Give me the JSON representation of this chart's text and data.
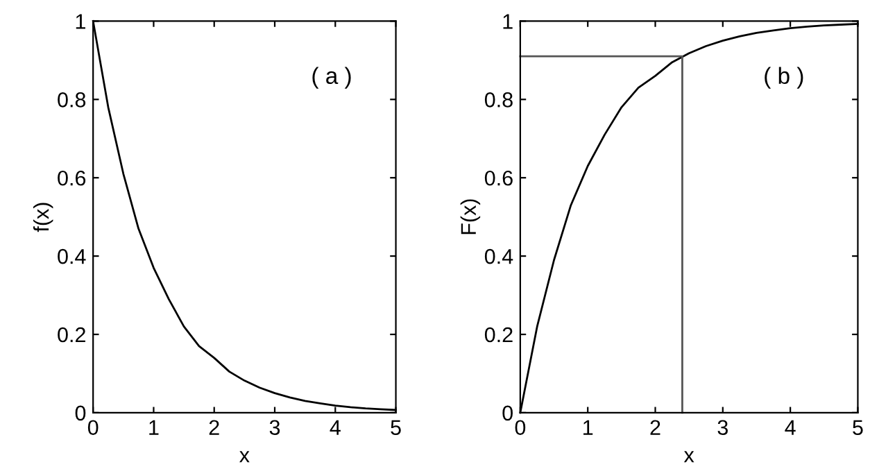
{
  "chart_data": [
    {
      "type": "line",
      "xlabel": "x",
      "ylabel": "f(x)",
      "annotations": [
        "( a )"
      ],
      "series": [
        {
          "color": "#000000",
          "x": [
            0,
            0.25,
            0.5,
            0.75,
            1,
            1.25,
            1.5,
            1.75,
            2,
            2.25,
            2.5,
            2.75,
            3,
            3.25,
            3.5,
            3.75,
            4,
            4.25,
            4.5,
            4.75,
            5
          ],
          "values": [
            1,
            0.78,
            0.61,
            0.47,
            0.37,
            0.29,
            0.22,
            0.17,
            0.14,
            0.105,
            0.082,
            0.064,
            0.05,
            0.039,
            0.03,
            0.024,
            0.018,
            0.014,
            0.011,
            0.009,
            0.007
          ]
        }
      ],
      "xlim": [
        0,
        5
      ],
      "ylim": [
        0,
        1
      ],
      "xticks": [
        0,
        1,
        2,
        3,
        4,
        5
      ],
      "yticks": [
        0,
        0.2,
        0.4,
        0.6,
        0.8,
        1
      ],
      "grid": false,
      "legend": false,
      "marker": "none",
      "line_style": "solid"
    },
    {
      "type": "line",
      "xlabel": "x",
      "ylabel": "F(x)",
      "annotations": [
        "( b )"
      ],
      "series": [
        {
          "color": "#000000",
          "x": [
            0,
            0.25,
            0.5,
            0.75,
            1,
            1.25,
            1.5,
            1.75,
            2,
            2.25,
            2.5,
            2.75,
            3,
            3.25,
            3.5,
            3.75,
            4,
            4.25,
            4.5,
            4.75,
            5
          ],
          "values": [
            0,
            0.22,
            0.39,
            0.53,
            0.63,
            0.71,
            0.78,
            0.83,
            0.86,
            0.895,
            0.918,
            0.936,
            0.95,
            0.961,
            0.97,
            0.976,
            0.982,
            0.986,
            0.989,
            0.991,
            0.993
          ]
        },
        {
          "color": "#555555",
          "x": [
            0,
            2.4,
            2.4
          ],
          "values": [
            0.91,
            0.91,
            0
          ]
        }
      ],
      "xlim": [
        0,
        5
      ],
      "ylim": [
        0,
        1
      ],
      "xticks": [
        0,
        1,
        2,
        3,
        4,
        5
      ],
      "yticks": [
        0,
        0.2,
        0.4,
        0.6,
        0.8,
        1
      ],
      "grid": false,
      "legend": false,
      "marker": "none",
      "line_style": "solid"
    }
  ]
}
